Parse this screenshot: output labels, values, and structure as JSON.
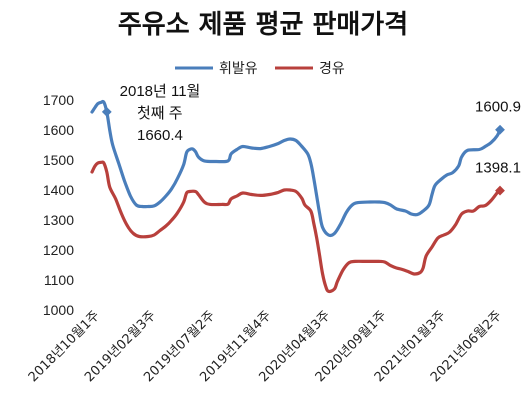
{
  "chart_data": {
    "type": "line",
    "title": "주유소 제품 평균 판매가격",
    "ylim": [
      1000,
      1700
    ],
    "yticks": [
      1000,
      1100,
      1200,
      1300,
      1400,
      1500,
      1600,
      1700
    ],
    "grid": false,
    "legend_position": "top",
    "x_tick_labels": [
      "2018년10월1주",
      "2019년02월3주",
      "2019년07월2주",
      "2019년11월4주",
      "2020년04월3주",
      "2020년09월1주",
      "2021년01월3주",
      "2021년06월2주"
    ],
    "x_tick_positions": [
      0,
      19,
      39,
      58,
      78,
      97,
      117,
      136
    ],
    "n_points": 138,
    "series": [
      {
        "name": "휘발유",
        "color": "#4a7ebb",
        "keypoints": [
          [
            0,
            1660
          ],
          [
            1,
            1675
          ],
          [
            2,
            1688
          ],
          [
            3,
            1692
          ],
          [
            4,
            1693
          ],
          [
            5,
            1660
          ],
          [
            6,
            1600
          ],
          [
            7,
            1550
          ],
          [
            9,
            1490
          ],
          [
            11,
            1430
          ],
          [
            13,
            1380
          ],
          [
            15,
            1350
          ],
          [
            17,
            1345
          ],
          [
            19,
            1345
          ],
          [
            21,
            1347
          ],
          [
            23,
            1360
          ],
          [
            25,
            1380
          ],
          [
            27,
            1405
          ],
          [
            29,
            1440
          ],
          [
            31,
            1485
          ],
          [
            32,
            1525
          ],
          [
            33,
            1535
          ],
          [
            34,
            1537
          ],
          [
            35,
            1528
          ],
          [
            36,
            1510
          ],
          [
            38,
            1497
          ],
          [
            42,
            1495
          ],
          [
            46,
            1497
          ],
          [
            47,
            1520
          ],
          [
            49,
            1535
          ],
          [
            51,
            1545
          ],
          [
            54,
            1540
          ],
          [
            57,
            1538
          ],
          [
            60,
            1545
          ],
          [
            63,
            1555
          ],
          [
            65,
            1565
          ],
          [
            67,
            1570
          ],
          [
            69,
            1565
          ],
          [
            71,
            1545
          ],
          [
            73,
            1520
          ],
          [
            74,
            1490
          ],
          [
            75,
            1440
          ],
          [
            76,
            1380
          ],
          [
            77,
            1320
          ],
          [
            78,
            1275
          ],
          [
            80,
            1250
          ],
          [
            82,
            1255
          ],
          [
            84,
            1285
          ],
          [
            86,
            1325
          ],
          [
            88,
            1350
          ],
          [
            90,
            1358
          ],
          [
            94,
            1360
          ],
          [
            97,
            1360
          ],
          [
            99,
            1358
          ],
          [
            101,
            1350
          ],
          [
            103,
            1337
          ],
          [
            106,
            1330
          ],
          [
            108,
            1320
          ],
          [
            110,
            1318
          ],
          [
            112,
            1330
          ],
          [
            114,
            1350
          ],
          [
            115,
            1385
          ],
          [
            116,
            1415
          ],
          [
            118,
            1435
          ],
          [
            120,
            1450
          ],
          [
            122,
            1458
          ],
          [
            124,
            1480
          ],
          [
            125,
            1510
          ],
          [
            127,
            1532
          ],
          [
            131,
            1535
          ],
          [
            133,
            1545
          ],
          [
            135,
            1558
          ],
          [
            137,
            1580
          ],
          [
            138,
            1600.9
          ]
        ]
      },
      {
        "name": "경유",
        "color": "#b8403c",
        "keypoints": [
          [
            0,
            1460
          ],
          [
            1,
            1480
          ],
          [
            2,
            1490
          ],
          [
            3,
            1492
          ],
          [
            4,
            1490
          ],
          [
            5,
            1460
          ],
          [
            6,
            1410
          ],
          [
            8,
            1370
          ],
          [
            10,
            1320
          ],
          [
            12,
            1280
          ],
          [
            14,
            1255
          ],
          [
            16,
            1245
          ],
          [
            19,
            1245
          ],
          [
            21,
            1250
          ],
          [
            23,
            1265
          ],
          [
            25,
            1280
          ],
          [
            27,
            1300
          ],
          [
            29,
            1325
          ],
          [
            31,
            1360
          ],
          [
            32,
            1390
          ],
          [
            33,
            1395
          ],
          [
            35,
            1395
          ],
          [
            36,
            1385
          ],
          [
            38,
            1360
          ],
          [
            40,
            1352
          ],
          [
            44,
            1352
          ],
          [
            46,
            1353
          ],
          [
            47,
            1370
          ],
          [
            49,
            1380
          ],
          [
            51,
            1390
          ],
          [
            54,
            1385
          ],
          [
            57,
            1382
          ],
          [
            60,
            1385
          ],
          [
            63,
            1392
          ],
          [
            65,
            1400
          ],
          [
            67,
            1400
          ],
          [
            69,
            1395
          ],
          [
            71,
            1372
          ],
          [
            72,
            1350
          ],
          [
            74,
            1330
          ],
          [
            75,
            1290
          ],
          [
            76,
            1240
          ],
          [
            77,
            1180
          ],
          [
            78,
            1120
          ],
          [
            79,
            1080
          ],
          [
            80,
            1062
          ],
          [
            82,
            1070
          ],
          [
            83,
            1095
          ],
          [
            85,
            1135
          ],
          [
            87,
            1158
          ],
          [
            89,
            1162
          ],
          [
            93,
            1162
          ],
          [
            97,
            1162
          ],
          [
            99,
            1160
          ],
          [
            101,
            1148
          ],
          [
            103,
            1140
          ],
          [
            105,
            1135
          ],
          [
            107,
            1128
          ],
          [
            109,
            1120
          ],
          [
            111,
            1125
          ],
          [
            112,
            1140
          ],
          [
            113,
            1180
          ],
          [
            115,
            1210
          ],
          [
            117,
            1240
          ],
          [
            119,
            1250
          ],
          [
            121,
            1260
          ],
          [
            123,
            1285
          ],
          [
            125,
            1320
          ],
          [
            127,
            1330
          ],
          [
            129,
            1330
          ],
          [
            131,
            1345
          ],
          [
            133,
            1348
          ],
          [
            135,
            1365
          ],
          [
            137,
            1390
          ],
          [
            138,
            1398.1
          ]
        ]
      }
    ],
    "annotations": [
      {
        "lines": [
          "2018년 11월",
          "첫째 주",
          "1660.4"
        ],
        "series": "휘발유",
        "x": 5,
        "y": 1660.4
      },
      {
        "lines": [
          "1600.9"
        ],
        "series": "휘발유",
        "x": 138,
        "y": 1600.9
      },
      {
        "lines": [
          "1398.1"
        ],
        "series": "경유",
        "x": 138,
        "y": 1398.1
      }
    ]
  }
}
